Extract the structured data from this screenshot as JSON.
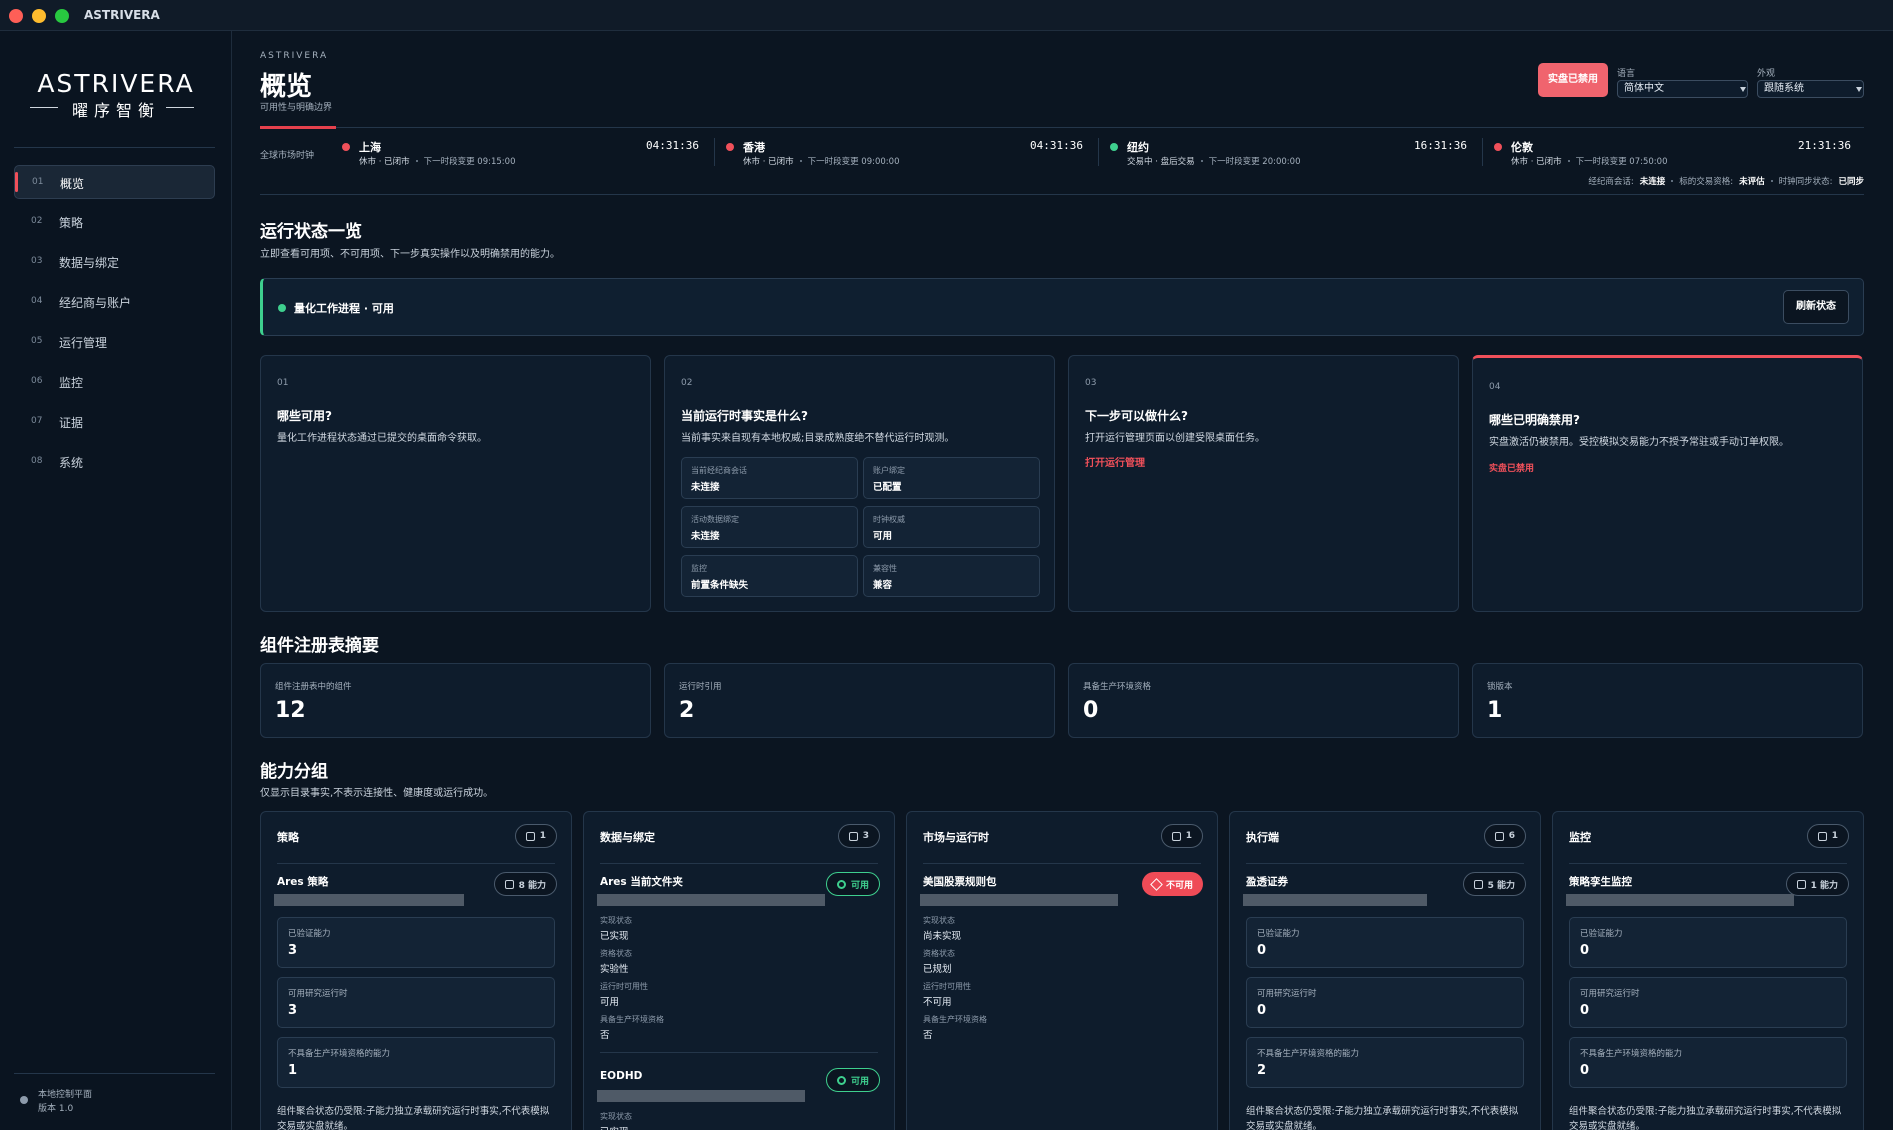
{
  "window": {
    "app": "ASTRIVERA"
  },
  "brand": {
    "logo": "ASTRIVERA",
    "sub": "曜序智衡"
  },
  "nav": [
    {
      "num": "01",
      "label": "概览"
    },
    {
      "num": "02",
      "label": "策略"
    },
    {
      "num": "03",
      "label": "数据与绑定"
    },
    {
      "num": "04",
      "label": "经纪商与账户"
    },
    {
      "num": "05",
      "label": "运行管理"
    },
    {
      "num": "06",
      "label": "监控"
    },
    {
      "num": "07",
      "label": "证据"
    },
    {
      "num": "08",
      "label": "系统"
    }
  ],
  "footer": {
    "label": "本地控制平面",
    "version": "版本 1.0"
  },
  "header": {
    "eyebrow": "ASTRIVERA",
    "title": "概览",
    "subtitle": "可用性与明确边界",
    "badge": "实盘已禁用",
    "language_label": "语言",
    "language": "简体中文",
    "theme_label": "外观",
    "theme": "跟随系统"
  },
  "clocks": {
    "label": "全球市场时钟",
    "items": [
      {
        "city": "上海",
        "status": "休市 · 已闭市",
        "next": "下一时段变更 09:15:00",
        "time": "04:31:36",
        "color": "#f0505a"
      },
      {
        "city": "香港",
        "status": "休市 · 已闭市",
        "next": "下一时段变更 09:00:00",
        "time": "04:31:36",
        "color": "#f0505a"
      },
      {
        "city": "纽约",
        "status": "交易中 · 盘后交易",
        "next": "下一时段变更 20:00:00",
        "time": "16:31:36",
        "color": "#3ecf8e"
      },
      {
        "city": "伦敦",
        "status": "休市 · 已闭市",
        "next": "下一时段变更 07:50:00",
        "time": "21:31:36",
        "color": "#f0505a"
      }
    ],
    "status_line": [
      {
        "label": "经纪商会话:",
        "value": "未连接"
      },
      {
        "label": "标的交易资格:",
        "value": "未评估"
      },
      {
        "label": "时钟同步状态:",
        "value": "已同步"
      }
    ]
  },
  "overview": {
    "title": "运行状态一览",
    "desc": "立即查看可用项、不可用项、下一步真实操作以及明确禁用的能力。",
    "banner": "量化工作进程 · 可用",
    "refresh": "刷新状态",
    "cards": [
      {
        "num": "01",
        "title": "哪些可用?",
        "body": "量化工作进程状态通过已提交的桌面命令获取。"
      },
      {
        "num": "02",
        "title": "当前运行时事实是什么?",
        "body": "当前事实来自现有本地权威;目录成熟度绝不替代运行时观测。",
        "facts": [
          {
            "label": "当前经纪商会话",
            "value": "未连接"
          },
          {
            "label": "账户绑定",
            "value": "已配置"
          },
          {
            "label": "活动数据绑定",
            "value": "未连接"
          },
          {
            "label": "时钟权威",
            "value": "可用"
          },
          {
            "label": "监控",
            "value": "前置条件缺失"
          },
          {
            "label": "兼容性",
            "value": "兼容"
          }
        ]
      },
      {
        "num": "03",
        "title": "下一步可以做什么?",
        "body": "打开运行管理页面以创建受限桌面任务。",
        "link": "打开运行管理"
      },
      {
        "num": "04",
        "title": "哪些已明确禁用?",
        "body": "实盘激活仍被禁用。受控模拟交易能力不授予常驻或手动订单权限。",
        "link": "实盘已禁用"
      }
    ]
  },
  "registry": {
    "title": "组件注册表摘要",
    "stats": [
      {
        "label": "组件注册表中的组件",
        "value": 12
      },
      {
        "label": "运行时引用",
        "value": 2
      },
      {
        "label": "具备生产环境资格",
        "value": 0
      },
      {
        "label": "锁版本",
        "value": 1
      }
    ]
  },
  "capabilities": {
    "title": "能力分组",
    "desc": "仅显示目录事实,不表示连接性、健康度或运行成功。",
    "groups": [
      {
        "name": "策略",
        "count": 1,
        "components": [
          {
            "name": "Ares 策略",
            "badge": {
              "text": "8 能力"
            },
            "metrics": [
              {
                "label": "已验证能力",
                "value": 3
              },
              {
                "label": "可用研究运行时",
                "value": 3
              },
              {
                "label": "不具备生产环境资格的能力",
                "value": 1
              }
            ]
          }
        ],
        "note": "组件聚合状态仍受限:子能力独立承载研究运行时事实,不代表模拟交易或实盘就绪。"
      },
      {
        "name": "数据与绑定",
        "count": 3,
        "components": [
          {
            "name": "Ares 当前文件夹",
            "badge": {
              "text": "可用",
              "color": "#3ecf8e"
            },
            "fields": [
              {
                "label": "实现状态",
                "value": "已实现"
              },
              {
                "label": "资格状态",
                "value": "实验性"
              },
              {
                "label": "运行时可用性",
                "value": "可用"
              },
              {
                "label": "具备生产环境资格",
                "value": "否"
              }
            ]
          },
          {
            "name": "EODHD",
            "badge": {
              "text": "可用",
              "color": "#3ecf8e"
            },
            "fields": [
              {
                "label": "实现状态",
                "value": "已实现"
              }
            ]
          }
        ]
      },
      {
        "name": "市场与运行时",
        "count": 1,
        "components": [
          {
            "name": "美国股票规则包",
            "badge": {
              "text": "不可用",
              "color": "#ffffff",
              "background": "#ef4b57"
            },
            "fields": [
              {
                "label": "实现状态",
                "value": "尚未实现"
              },
              {
                "label": "资格状态",
                "value": "已规划"
              },
              {
                "label": "运行时可用性",
                "value": "不可用"
              },
              {
                "label": "具备生产环境资格",
                "value": "否"
              }
            ]
          }
        ]
      },
      {
        "name": "执行端",
        "count": 6,
        "components": [
          {
            "name": "盈透证券",
            "badge": {
              "text": "5 能力"
            },
            "metrics": [
              {
                "label": "已验证能力",
                "value": 0
              },
              {
                "label": "可用研究运行时",
                "value": 0
              },
              {
                "label": "不具备生产环境资格的能力",
                "value": 2
              }
            ]
          }
        ],
        "note": "组件聚合状态仍受限:子能力独立承载研究运行时事实,不代表模拟交易或实盘就绪。"
      },
      {
        "name": "监控",
        "count": 1,
        "components": [
          {
            "name": "策略孪生监控",
            "badge": {
              "text": "1 能力"
            },
            "metrics": [
              {
                "label": "已验证能力",
                "value": 0
              },
              {
                "label": "可用研究运行时",
                "value": 0
              },
              {
                "label": "不具备生产环境资格的能力",
                "value": 0
              }
            ]
          }
        ],
        "note": "组件聚合状态仍受限:子能力独立承载研究运行时事实,不代表模拟交易或实盘就绪。"
      }
    ]
  }
}
